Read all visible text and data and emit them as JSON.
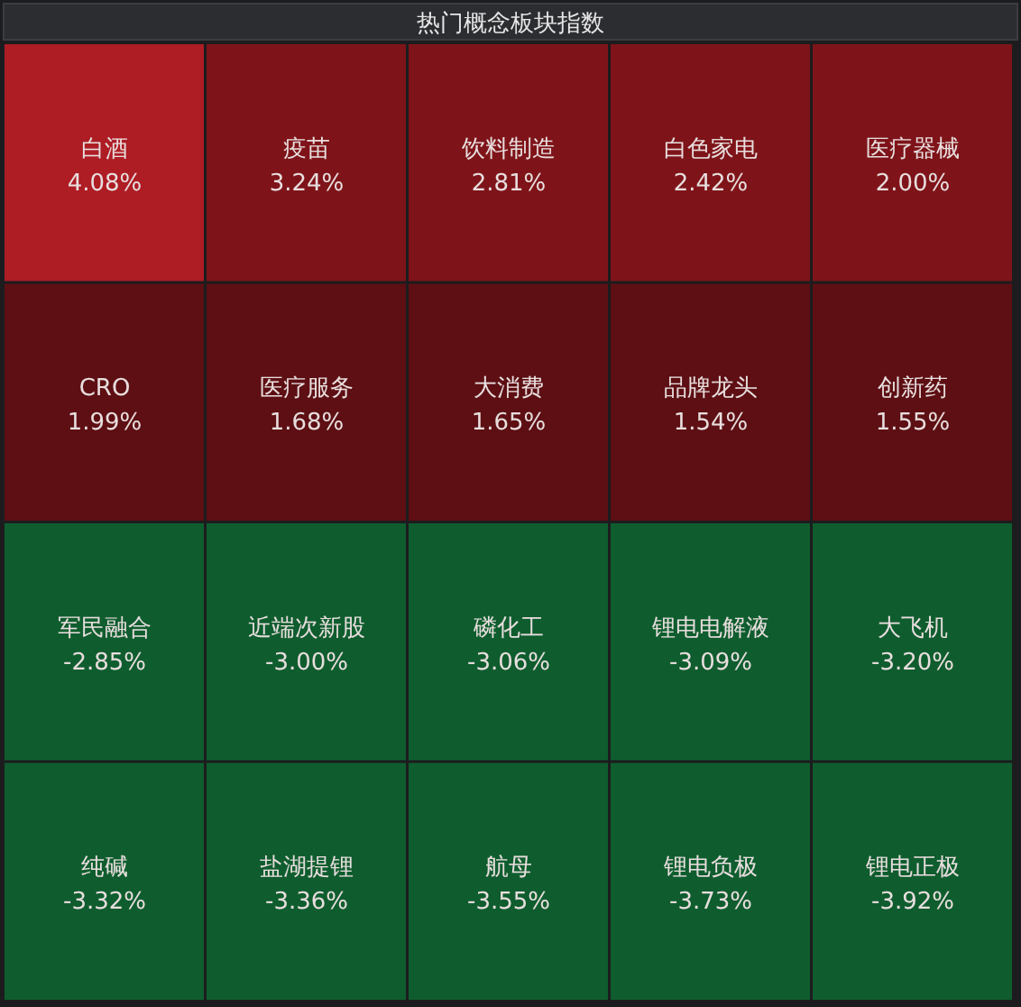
{
  "chart_data": {
    "type": "other",
    "title": "热门概念板块指数",
    "categories": [
      "白酒",
      "疫苗",
      "饮料制造",
      "白色家电",
      "医疗器械",
      "CRO",
      "医疗服务",
      "大消费",
      "品牌龙头",
      "创新药",
      "军民融合",
      "近端次新股",
      "磷化工",
      "锂电电解液",
      "大飞机",
      "纯碱",
      "盐湖提锂",
      "航母",
      "锂电负极",
      "锂电正极"
    ],
    "values": [
      4.08,
      3.24,
      2.81,
      2.42,
      2.0,
      1.99,
      1.68,
      1.65,
      1.54,
      1.55,
      -2.85,
      -3.0,
      -3.06,
      -3.09,
      -3.2,
      -3.32,
      -3.36,
      -3.55,
      -3.73,
      -3.92
    ],
    "value_labels": [
      "4.08%",
      "3.24%",
      "2.81%",
      "2.42%",
      "2.00%",
      "1.99%",
      "1.68%",
      "1.65%",
      "1.54%",
      "1.55%",
      "-2.85%",
      "-3.00%",
      "-3.06%",
      "-3.09%",
      "-3.20%",
      "-3.32%",
      "-3.36%",
      "-3.55%",
      "-3.73%",
      "-3.92%"
    ]
  }
}
